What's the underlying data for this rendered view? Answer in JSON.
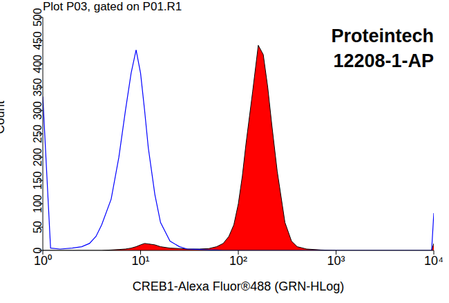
{
  "chart_data": {
    "type": "line",
    "title": "Plot P03, gated on P01.R1",
    "annotations": [
      "Proteintech",
      "12208-1-AP"
    ],
    "x_label": "CREB1-Alexa Fluor®488 (GRN-HLog)",
    "y_label": "Count",
    "log": "x",
    "grid": false,
    "x": [
      1,
      1.2,
      1.5,
      2,
      2.5,
      3,
      3.5,
      4,
      5,
      6,
      7,
      8,
      9,
      10,
      11,
      12,
      14,
      16,
      20,
      25,
      30,
      40,
      50,
      60,
      70,
      80,
      90,
      100,
      110,
      120,
      140,
      160,
      180,
      200,
      220,
      250,
      300,
      350,
      400,
      500,
      700,
      1000,
      2000,
      5000,
      9500,
      10000
    ],
    "series": [
      {
        "color": "#0000ff",
        "type": "line",
        "values": [
          330,
          5,
          3,
          5,
          8,
          15,
          30,
          55,
          110,
          200,
          300,
          380,
          430,
          380,
          300,
          220,
          120,
          60,
          20,
          8,
          3,
          2,
          1,
          1,
          0,
          0,
          0,
          0,
          0,
          0,
          0,
          0,
          0,
          0,
          0,
          0,
          0,
          0,
          0,
          0,
          0,
          0,
          0,
          0,
          0,
          80
        ]
      },
      {
        "color": "#ff0000",
        "type": "area",
        "values": [
          0,
          0,
          0,
          0,
          0,
          0,
          0,
          0,
          1,
          2,
          3,
          5,
          8,
          12,
          15,
          14,
          12,
          8,
          5,
          4,
          3,
          3,
          4,
          8,
          15,
          30,
          55,
          100,
          160,
          230,
          340,
          440,
          420,
          350,
          270,
          170,
          60,
          20,
          8,
          3,
          1,
          0,
          0,
          0,
          0,
          15
        ]
      }
    ],
    "xlim": [
      1,
      10000
    ],
    "xticks": [
      {
        "value": 1,
        "label": "10⁰"
      },
      {
        "value": 10,
        "label": "10¹"
      },
      {
        "value": 100,
        "label": "10²"
      },
      {
        "value": 1000,
        "label": "10³"
      },
      {
        "value": 10000,
        "label": "10⁴"
      }
    ],
    "ylim": [
      0,
      500
    ],
    "yticks": [
      0,
      50,
      100,
      150,
      200,
      250,
      300,
      350,
      400,
      450,
      500
    ]
  }
}
